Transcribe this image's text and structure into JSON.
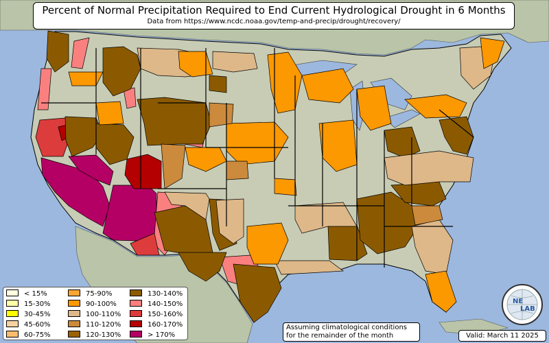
{
  "title": "Percent of Normal Precipitation Required to End Current Hydrological Drought in 6 Months",
  "subtitle": "Data from https://www.ncdc.noaa.gov/temp-and-precip/drought/recovery/",
  "legend": [
    {
      "label": "< 15%",
      "color": "#fffde0"
    },
    {
      "label": "15-30%",
      "color": "#ffffa8"
    },
    {
      "label": "30-45%",
      "color": "#ffff00"
    },
    {
      "label": "45-60%",
      "color": "#f6d2a0"
    },
    {
      "label": "60-75%",
      "color": "#f9bd6b"
    },
    {
      "label": "75-90%",
      "color": "#fba534"
    },
    {
      "label": "90-100%",
      "color": "#fc9800"
    },
    {
      "label": "100-110%",
      "color": "#deb889"
    },
    {
      "label": "110-120%",
      "color": "#cc8a3c"
    },
    {
      "label": "120-130%",
      "color": "#9a6200"
    },
    {
      "label": "130-140%",
      "color": "#8b5a00"
    },
    {
      "label": "140-150%",
      "color": "#fa8080"
    },
    {
      "label": "150-160%",
      "color": "#dc3c3c"
    },
    {
      "label": "160-170%",
      "color": "#b40000"
    },
    {
      "label": "> 170%",
      "color": "#b40064"
    }
  ],
  "note": {
    "line1": "Assuming climatological conditions",
    "line2": "for the remainder of the month"
  },
  "valid": "Valid: March 11 2025",
  "logo": {
    "text_top": "NE",
    "text_bottom": "LAB"
  },
  "colors": {
    "ocean": "#9cb8de",
    "land": "#c8ccb4",
    "land_foreign": "#b9c4a8",
    "lake": "#9cb8de",
    "county_border": "#000000"
  }
}
